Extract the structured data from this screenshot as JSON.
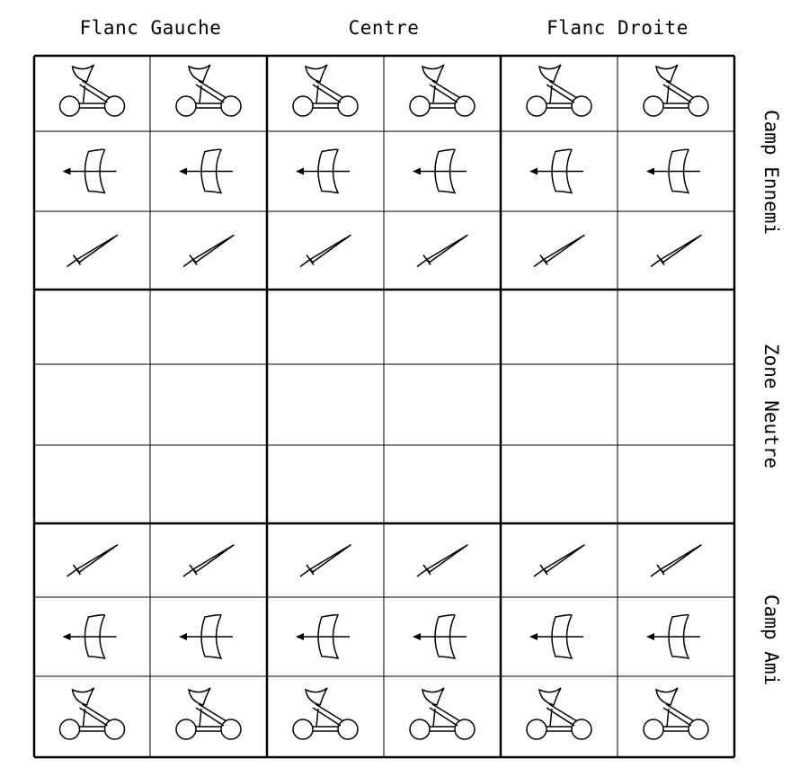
{
  "board": {
    "columns": 6,
    "rows": 9,
    "column_groups": [
      "Flanc Gauche",
      "Centre",
      "Flanc Droite"
    ],
    "row_groups": [
      "Camp Ennemi",
      "Zone Neutre",
      "Camp Ami"
    ],
    "pieces": [
      [
        "catapult-icon",
        "catapult-icon",
        "catapult-icon",
        "catapult-icon",
        "catapult-icon",
        "catapult-icon"
      ],
      [
        "bow-icon",
        "bow-icon",
        "bow-icon",
        "bow-icon",
        "bow-icon",
        "bow-icon"
      ],
      [
        "sword-icon",
        "sword-icon",
        "sword-icon",
        "sword-icon",
        "sword-icon",
        "sword-icon"
      ],
      [
        "",
        "",
        "",
        "",
        "",
        ""
      ],
      [
        "",
        "",
        "",
        "",
        "",
        ""
      ],
      [
        "",
        "",
        "",
        "",
        "",
        ""
      ],
      [
        "sword-icon",
        "sword-icon",
        "sword-icon",
        "sword-icon",
        "sword-icon",
        "sword-icon"
      ],
      [
        "bow-icon",
        "bow-icon",
        "bow-icon",
        "bow-icon",
        "bow-icon",
        "bow-icon"
      ],
      [
        "catapult-icon",
        "catapult-icon",
        "catapult-icon",
        "catapult-icon",
        "catapult-icon",
        "catapult-icon"
      ]
    ]
  }
}
